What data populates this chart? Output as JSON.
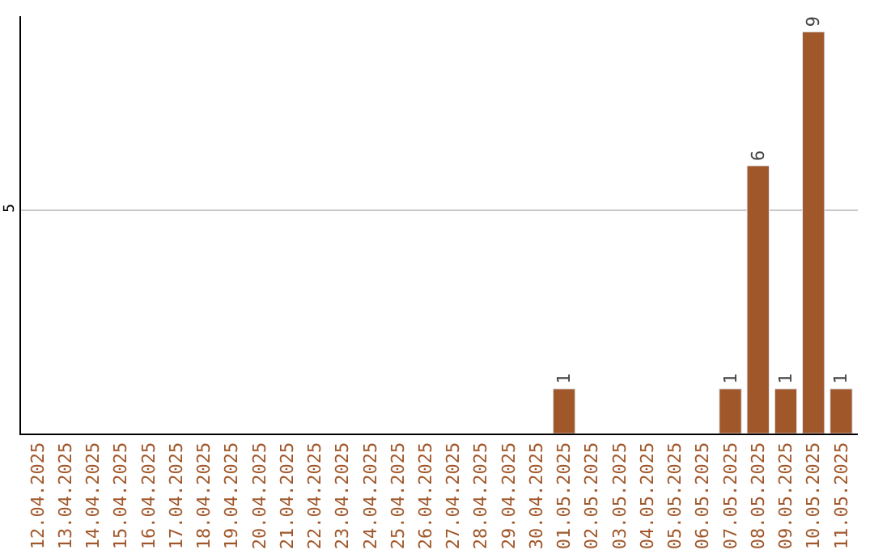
{
  "chart_data": {
    "type": "bar",
    "categories": [
      "12.04.2025",
      "13.04.2025",
      "14.04.2025",
      "15.04.2025",
      "16.04.2025",
      "17.04.2025",
      "18.04.2025",
      "19.04.2025",
      "20.04.2025",
      "21.04.2025",
      "22.04.2025",
      "23.04.2025",
      "24.04.2025",
      "25.04.2025",
      "26.04.2025",
      "27.04.2025",
      "28.04.2025",
      "29.04.2025",
      "30.04.2025",
      "01.05.2025",
      "02.05.2025",
      "03.05.2025",
      "04.05.2025",
      "05.05.2025",
      "06.05.2025",
      "07.05.2025",
      "08.05.2025",
      "09.05.2025",
      "10.05.2025",
      "11.05.2025"
    ],
    "values": [
      null,
      null,
      null,
      null,
      null,
      null,
      null,
      null,
      null,
      null,
      null,
      null,
      null,
      null,
      null,
      null,
      null,
      null,
      null,
      1,
      null,
      null,
      null,
      null,
      null,
      1,
      6,
      1,
      9,
      1
    ],
    "value_labels": [
      null,
      null,
      null,
      null,
      null,
      null,
      null,
      null,
      null,
      null,
      null,
      null,
      null,
      null,
      null,
      null,
      null,
      null,
      null,
      "1",
      null,
      null,
      null,
      null,
      null,
      "1",
      "6",
      "1",
      "9",
      "1"
    ],
    "color": "#a0572a",
    "ylim": [
      0,
      9.35
    ],
    "yticks": [
      5
    ],
    "grid": "y",
    "legend": false
  }
}
